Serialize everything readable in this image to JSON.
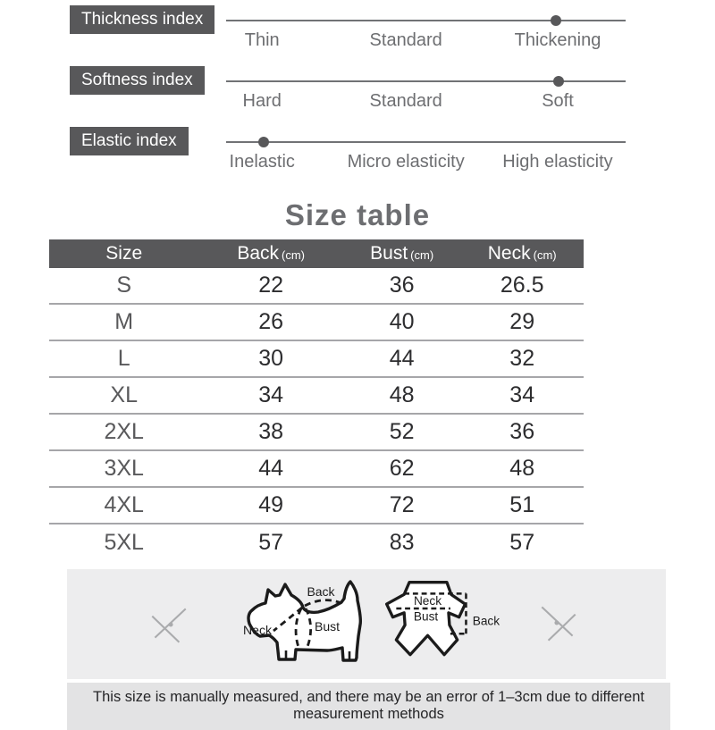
{
  "indices": {
    "rows": [
      {
        "label": "Thickness index",
        "ticks": [
          "Thin",
          "Standard",
          "Thickening"
        ],
        "dot_position_pct": 82.6,
        "selected": "Thickening"
      },
      {
        "label": "Softness index",
        "ticks": [
          "Hard",
          "Standard",
          "Soft"
        ],
        "dot_position_pct": 83.2,
        "selected": "Soft"
      },
      {
        "label": "Elastic index",
        "ticks": [
          "Inelastic",
          "Micro elasticity",
          "High elasticity"
        ],
        "dot_position_pct": 9.4,
        "selected": "Inelastic"
      }
    ]
  },
  "size_table": {
    "title": "Size table",
    "columns": [
      "Size",
      "Back",
      "Bust",
      "Neck"
    ],
    "unit": "(cm)",
    "rows": [
      {
        "size": "S",
        "back": "22",
        "bust": "36",
        "neck": "26.5"
      },
      {
        "size": "M",
        "back": "26",
        "bust": "40",
        "neck": "29"
      },
      {
        "size": "L",
        "back": "30",
        "bust": "44",
        "neck": "32"
      },
      {
        "size": "XL",
        "back": "34",
        "bust": "48",
        "neck": "34"
      },
      {
        "size": "2XL",
        "back": "38",
        "bust": "52",
        "neck": "36"
      },
      {
        "size": "3XL",
        "back": "44",
        "bust": "62",
        "neck": "48"
      },
      {
        "size": "4XL",
        "back": "49",
        "bust": "72",
        "neck": "51"
      },
      {
        "size": "5XL",
        "back": "57",
        "bust": "83",
        "neck": "57"
      }
    ]
  },
  "diagram": {
    "dog": {
      "back": "Back",
      "neck": "Neck",
      "bust": "Bust"
    },
    "shirt": {
      "neck": "Neck",
      "bust": "Bust",
      "back": "Back"
    }
  },
  "footer": {
    "note": "This size is manually measured, and there may be an error of 1–3cm due to different measurement methods"
  },
  "colors": {
    "dark": "#58585a",
    "line": "#717275",
    "tick": "#6d6e71",
    "title": "#6d6e71",
    "sizecol": "#59595b",
    "num": "#2d2d2f",
    "sep": "#a6a6a9",
    "panel": "#ededee",
    "footerbg": "#e3e3e4",
    "footertext": "#252527",
    "sparkle": "#aaabad",
    "stroke": "#1b1b1b"
  }
}
